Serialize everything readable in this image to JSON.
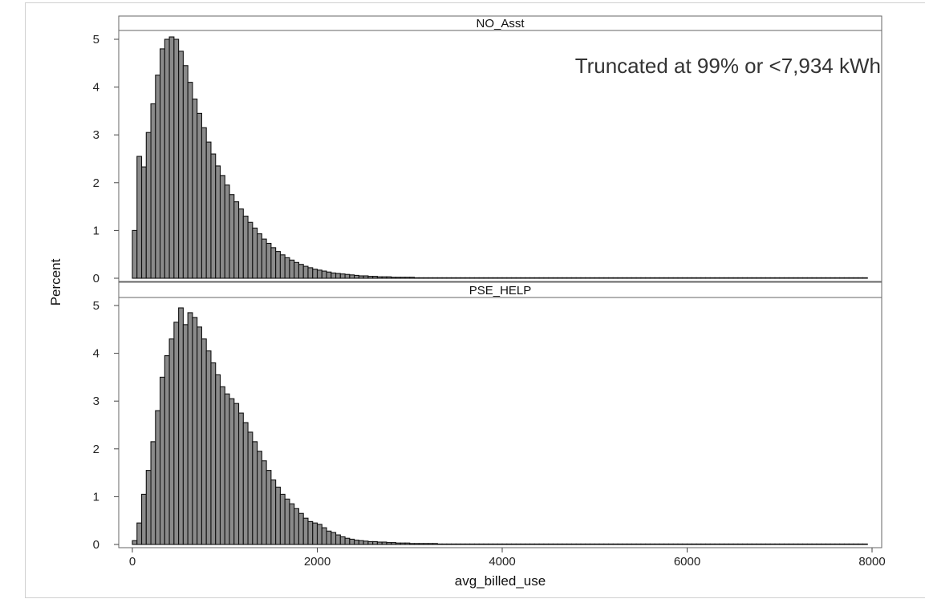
{
  "chart_data": {
    "type": "bar",
    "chart_kind": "histogram",
    "title": "",
    "xlabel": "avg_billed_use",
    "ylabel": "Percent",
    "xlim": [
      0,
      8000
    ],
    "ylim": [
      0,
      5.2
    ],
    "x_ticks": [
      "0",
      "2000",
      "4000",
      "6000",
      "8000"
    ],
    "y_ticks": [
      "0",
      "1",
      "2",
      "3",
      "4",
      "5"
    ],
    "grid": false,
    "legend": "none",
    "bar_color": "#8a8a8a",
    "edge_color": "#111111",
    "bin_width": 50,
    "annotation": "Truncated at 99% or <7,934 kWh",
    "panels": [
      {
        "label": "NO_Asst",
        "bin_start": 0,
        "values": [
          1.0,
          2.55,
          2.33,
          3.05,
          3.65,
          4.25,
          4.8,
          5.0,
          5.05,
          5.0,
          4.75,
          4.45,
          4.1,
          3.75,
          3.45,
          3.15,
          2.85,
          2.6,
          2.35,
          2.15,
          1.95,
          1.75,
          1.6,
          1.45,
          1.3,
          1.17,
          1.05,
          0.93,
          0.82,
          0.73,
          0.64,
          0.56,
          0.49,
          0.43,
          0.38,
          0.33,
          0.29,
          0.25,
          0.22,
          0.19,
          0.17,
          0.15,
          0.13,
          0.11,
          0.1,
          0.09,
          0.08,
          0.07,
          0.06,
          0.05,
          0.05,
          0.04,
          0.04,
          0.03,
          0.03,
          0.03,
          0.02,
          0.02,
          0.02,
          0.02,
          0.02,
          0.01,
          0.01,
          0.01,
          0.01,
          0.01,
          0.01,
          0.01,
          0.01,
          0.01,
          0.01,
          0.01,
          0.01,
          0.01,
          0.01,
          0.01,
          0.01,
          0.01,
          0.01,
          0.01,
          0.01,
          0.01,
          0.01,
          0.01,
          0.01,
          0.01,
          0.01,
          0.01,
          0.01,
          0.01,
          0.01,
          0.01,
          0.01,
          0.01,
          0.01,
          0.01,
          0.01,
          0.01,
          0.01,
          0.01,
          0.01,
          0.01,
          0.01,
          0.01,
          0.01,
          0.01,
          0.01,
          0.01,
          0.01,
          0.01,
          0.01,
          0.01,
          0.01,
          0.01,
          0.01,
          0.01,
          0.01,
          0.01,
          0.01,
          0.01,
          0.01,
          0.01,
          0.01,
          0.01,
          0.01,
          0.01,
          0.01,
          0.01,
          0.01,
          0.01,
          0.01,
          0.01,
          0.01,
          0.01,
          0.01,
          0.01,
          0.01,
          0.01,
          0.01,
          0.01,
          0.01,
          0.01,
          0.01,
          0.01,
          0.01,
          0.01,
          0.01,
          0.01,
          0.01,
          0.01,
          0.01,
          0.01,
          0.01,
          0.01,
          0.01,
          0.01,
          0.01,
          0.01,
          0.01
        ]
      },
      {
        "label": "PSE_HELP",
        "bin_start": 0,
        "values": [
          0.08,
          0.45,
          1.05,
          1.55,
          2.15,
          2.8,
          3.5,
          3.95,
          4.3,
          4.65,
          4.95,
          4.6,
          4.85,
          4.75,
          4.55,
          4.3,
          4.05,
          3.8,
          3.55,
          3.3,
          3.15,
          3.05,
          2.95,
          2.75,
          2.55,
          2.35,
          2.15,
          1.95,
          1.75,
          1.55,
          1.35,
          1.2,
          1.05,
          0.95,
          0.85,
          0.75,
          0.65,
          0.55,
          0.48,
          0.45,
          0.42,
          0.35,
          0.28,
          0.25,
          0.2,
          0.16,
          0.13,
          0.11,
          0.09,
          0.08,
          0.07,
          0.06,
          0.06,
          0.05,
          0.05,
          0.04,
          0.04,
          0.03,
          0.03,
          0.03,
          0.02,
          0.02,
          0.02,
          0.02,
          0.02,
          0.02,
          0.01,
          0.01,
          0.01,
          0.01,
          0.01,
          0.01,
          0.01,
          0.01,
          0.01,
          0.01,
          0.01,
          0.01,
          0.01,
          0.01,
          0.01,
          0.01,
          0.01,
          0.01,
          0.01,
          0.01,
          0.01,
          0.01,
          0.01,
          0.01,
          0.01,
          0.01,
          0.01,
          0.01,
          0.01,
          0.01,
          0.01,
          0.01,
          0.01,
          0.01,
          0.01,
          0.01,
          0.01,
          0.01,
          0.01,
          0.01,
          0.01,
          0.01,
          0.01,
          0.01,
          0.01,
          0.01,
          0.01,
          0.01,
          0.01,
          0.01,
          0.01,
          0.01,
          0.01,
          0.01,
          0.01,
          0.01,
          0.01,
          0.01,
          0.01,
          0.01,
          0.01,
          0.01,
          0.01,
          0.01,
          0.01,
          0.01,
          0.01,
          0.01,
          0.01,
          0.01,
          0.01,
          0.01,
          0.01,
          0.01,
          0.01,
          0.01,
          0.01,
          0.01,
          0.01,
          0.01,
          0.01,
          0.01,
          0.01,
          0.01,
          0.01,
          0.01,
          0.01,
          0.01,
          0.01,
          0.01,
          0.01,
          0.01,
          0.01
        ]
      }
    ]
  }
}
